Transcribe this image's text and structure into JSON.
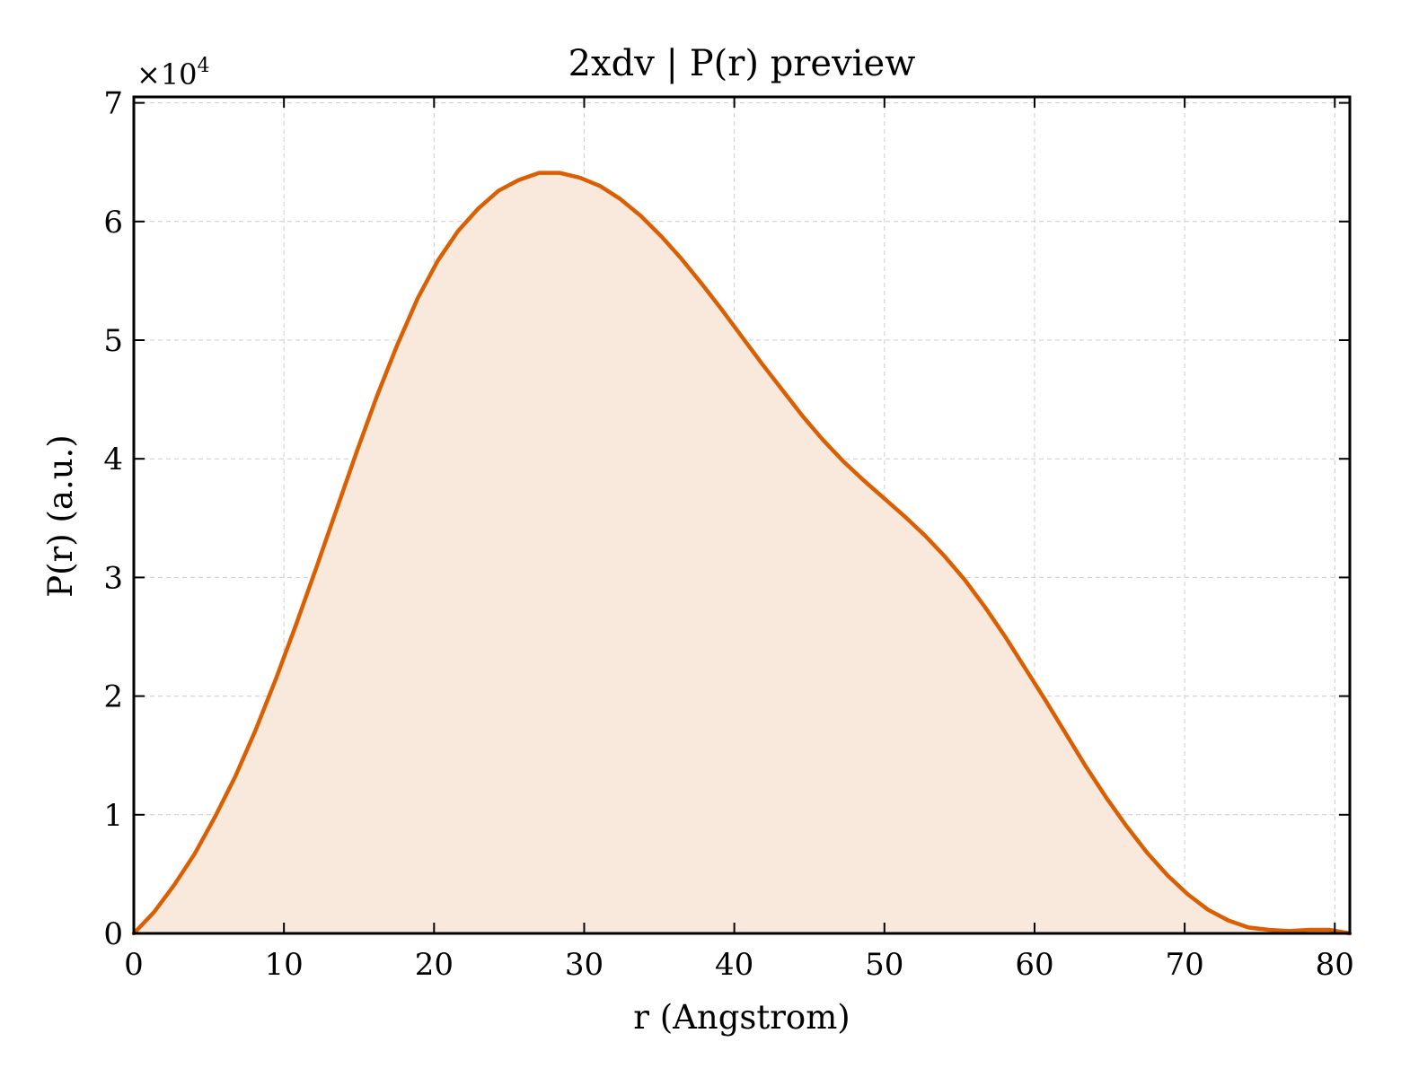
{
  "chart_data": {
    "type": "area",
    "title": "2xdv | P(r) preview",
    "xlabel": "r (Angstrom)",
    "ylabel": "P(r) (a.u.)",
    "y_multiplier": {
      "base": "×10",
      "exponent": "4"
    },
    "xlim": [
      0,
      81
    ],
    "ylim": [
      0,
      70500
    ],
    "x_ticks": [
      0,
      10,
      20,
      30,
      40,
      50,
      60,
      70,
      80
    ],
    "y_ticks": [
      0,
      10000,
      20000,
      30000,
      40000,
      50000,
      60000,
      70000
    ],
    "y_tick_labels": [
      "0",
      "1",
      "2",
      "3",
      "4",
      "5",
      "6",
      "7"
    ],
    "grid": true,
    "line_color": "#d95f02",
    "fill_color": "#f9e8dc",
    "series": [
      {
        "x": [
          0,
          1.35,
          2.7,
          4.05,
          5.4,
          6.75,
          8.1,
          9.45,
          10.8,
          12.15,
          13.5,
          14.85,
          16.2,
          17.55,
          18.9,
          20.25,
          21.6,
          22.95,
          24.3,
          25.65,
          27.0,
          28.35,
          29.7,
          31.05,
          32.4,
          33.75,
          35.1,
          36.45,
          37.8,
          39.15,
          40.5,
          41.85,
          43.2,
          44.55,
          45.9,
          47.25,
          48.6,
          49.95,
          51.3,
          52.65,
          54.0,
          55.35,
          56.7,
          58.05,
          59.4,
          60.75,
          62.1,
          63.45,
          64.8,
          66.15,
          67.5,
          68.85,
          70.2,
          71.55,
          72.9,
          74.25,
          75.6,
          76.95,
          78.3,
          79.65,
          81.0
        ],
        "y": [
          0,
          1800,
          4100,
          6700,
          9800,
          13200,
          17100,
          21400,
          26000,
          30800,
          35700,
          40600,
          45300,
          49600,
          53500,
          56700,
          59200,
          61100,
          62600,
          63500,
          64100,
          64100,
          63700,
          63000,
          61900,
          60500,
          58800,
          56900,
          54800,
          52600,
          50300,
          48000,
          45800,
          43600,
          41600,
          39800,
          38200,
          36700,
          35200,
          33600,
          31800,
          29800,
          27500,
          25000,
          22300,
          19600,
          16800,
          14000,
          11400,
          9000,
          6800,
          4900,
          3300,
          2000,
          1100,
          500,
          300,
          200,
          300,
          300,
          0
        ]
      }
    ]
  }
}
